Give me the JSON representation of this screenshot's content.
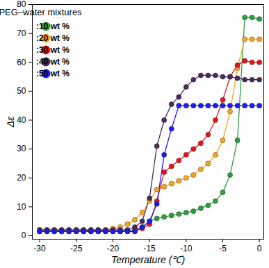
{
  "chart_data": {
    "type": "line",
    "title": "PEG–water mixtures",
    "x_label": "Temperature (℃)",
    "y_label": "Δε",
    "x": [
      -30,
      -29,
      -28,
      -27,
      -26,
      -25,
      -24,
      -23,
      -22,
      -21,
      -20,
      -19,
      -18,
      -17,
      -16,
      -15,
      -14,
      -13,
      -12,
      -11,
      -10,
      -9,
      -8,
      -7,
      -6,
      -5,
      -4,
      -3,
      -2,
      -1,
      0
    ],
    "series": [
      {
        "name": ":10 wt %",
        "color": "#2e9e3e",
        "values": [
          1.5,
          1.5,
          1.5,
          1.5,
          1.5,
          1.5,
          1.5,
          1.5,
          1.5,
          1.5,
          1.5,
          1.5,
          1.5,
          2,
          3,
          5,
          6,
          6.5,
          7,
          7.5,
          8,
          8.5,
          9.5,
          10.5,
          12,
          15,
          21,
          33,
          75.5,
          75.5,
          75
        ]
      },
      {
        "name": ":20 wt %",
        "color": "#f5a623",
        "values": [
          2,
          2,
          2,
          2,
          2,
          2,
          2,
          2,
          2,
          2,
          2.5,
          3,
          4,
          5.5,
          8,
          12,
          16,
          17,
          18,
          19,
          20,
          21,
          23,
          25,
          28,
          33,
          43,
          58,
          68,
          68,
          68
        ]
      },
      {
        "name": ":30 wt %",
        "color": "#e8141b",
        "values": [
          1.5,
          1.5,
          1.5,
          1.5,
          1.5,
          1.5,
          1.5,
          1.5,
          1.5,
          1.5,
          1.5,
          1.5,
          1.5,
          1.5,
          2.5,
          4,
          12,
          22,
          24,
          26,
          28,
          30,
          32,
          35,
          40,
          47,
          55,
          59,
          60.5,
          60,
          60
        ]
      },
      {
        "name": ":40 wt %",
        "color": "#4b2a5a",
        "values": [
          2,
          2,
          2,
          2,
          2,
          2,
          2,
          2,
          2,
          2,
          2,
          2,
          2,
          3,
          5,
          13,
          31,
          40,
          45.5,
          48,
          51.5,
          54,
          55.5,
          55.5,
          55.5,
          55,
          55,
          54.5,
          54,
          54,
          54
        ]
      },
      {
        "name": ":50 wt %",
        "color": "#1c1cf0",
        "values": [
          1.5,
          1.5,
          1.5,
          1.5,
          1.5,
          1.5,
          1.5,
          1.5,
          1.5,
          1.5,
          1.5,
          1.5,
          1.5,
          1.5,
          3,
          5,
          11,
          28,
          37,
          45,
          45,
          45,
          45,
          45,
          45,
          45,
          45,
          45,
          45,
          45,
          45
        ]
      }
    ],
    "xlim": [
      -31,
      0.6
    ],
    "xticks": [
      -30,
      -25,
      -20,
      -15,
      -10,
      -5,
      0
    ],
    "ylim": [
      -1.2,
      80
    ],
    "yticks": [
      0,
      10,
      20,
      30,
      40,
      50,
      60,
      70,
      80
    ],
    "marker": "circle",
    "line_style": "solid",
    "legend": "upper left",
    "grid": false
  }
}
